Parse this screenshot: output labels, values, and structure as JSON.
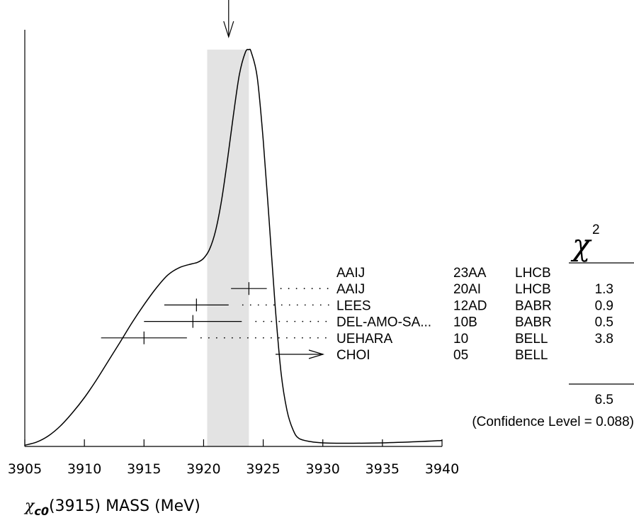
{
  "chart_data": {
    "type": "ideogram",
    "xlabel_symbol": "χ",
    "xlabel_sub": "c0",
    "xlabel_rest": "(3915) MASS (MeV)",
    "xlim": [
      3905,
      3940
    ],
    "xticks": [
      "3905",
      "3910",
      "3915",
      "3920",
      "3925",
      "3930",
      "3935",
      "3940"
    ],
    "average_band": [
      3920.3,
      3923.8
    ],
    "average_marker": 3922.1,
    "chi2_header": "χ",
    "chi2_sup": "2",
    "chi2_total": "6.5",
    "confidence_level": "(Confidence Level = 0.088)",
    "measurements": [
      {
        "author": "AAIJ",
        "ref": "23AA",
        "exp": "LHCB",
        "value": null,
        "lo": null,
        "hi": null,
        "chi2": ""
      },
      {
        "author": "AAIJ",
        "ref": "20AI",
        "exp": "LHCB",
        "value": 3923.8,
        "lo": 3922.3,
        "hi": 3925.3,
        "chi2": "1.3"
      },
      {
        "author": "LEES",
        "ref": "12AD",
        "exp": "BABR",
        "value": 3919.4,
        "lo": 3916.7,
        "hi": 3922.1,
        "chi2": "0.9"
      },
      {
        "author": "DEL-AMO-SA...",
        "ref": "10B",
        "exp": "BABR",
        "value": 3919.1,
        "lo": 3915.0,
        "hi": 3923.2,
        "chi2": "0.5"
      },
      {
        "author": "UEHARA",
        "ref": "10",
        "exp": "BELL",
        "value": 3915.0,
        "lo": 3911.4,
        "hi": 3918.6,
        "chi2": "3.8"
      },
      {
        "author": "CHOI",
        "ref": "05",
        "exp": "BELL",
        "value": null,
        "lo": null,
        "hi": null,
        "chi2": "",
        "arrow": true
      }
    ],
    "curve_x": [
      3905,
      3906,
      3907,
      3908,
      3909,
      3910,
      3911,
      3912,
      3913,
      3914,
      3915,
      3916,
      3917,
      3918,
      3919,
      3919.5,
      3920,
      3920.5,
      3921,
      3921.5,
      3922,
      3922.5,
      3923,
      3923.5,
      3923.8,
      3924,
      3924.5,
      3925,
      3925.5,
      3926,
      3926.5,
      3927,
      3927.5,
      3928,
      3929,
      3930,
      3932,
      3935,
      3938,
      3940
    ],
    "curve_y": [
      0.003,
      0.011,
      0.027,
      0.052,
      0.085,
      0.123,
      0.167,
      0.215,
      0.263,
      0.312,
      0.357,
      0.398,
      0.432,
      0.451,
      0.46,
      0.464,
      0.474,
      0.497,
      0.543,
      0.619,
      0.722,
      0.835,
      0.937,
      0.993,
      1.0,
      0.993,
      0.93,
      0.772,
      0.568,
      0.355,
      0.185,
      0.09,
      0.042,
      0.02,
      0.012,
      0.009,
      0.008,
      0.009,
      0.012,
      0.015
    ]
  }
}
